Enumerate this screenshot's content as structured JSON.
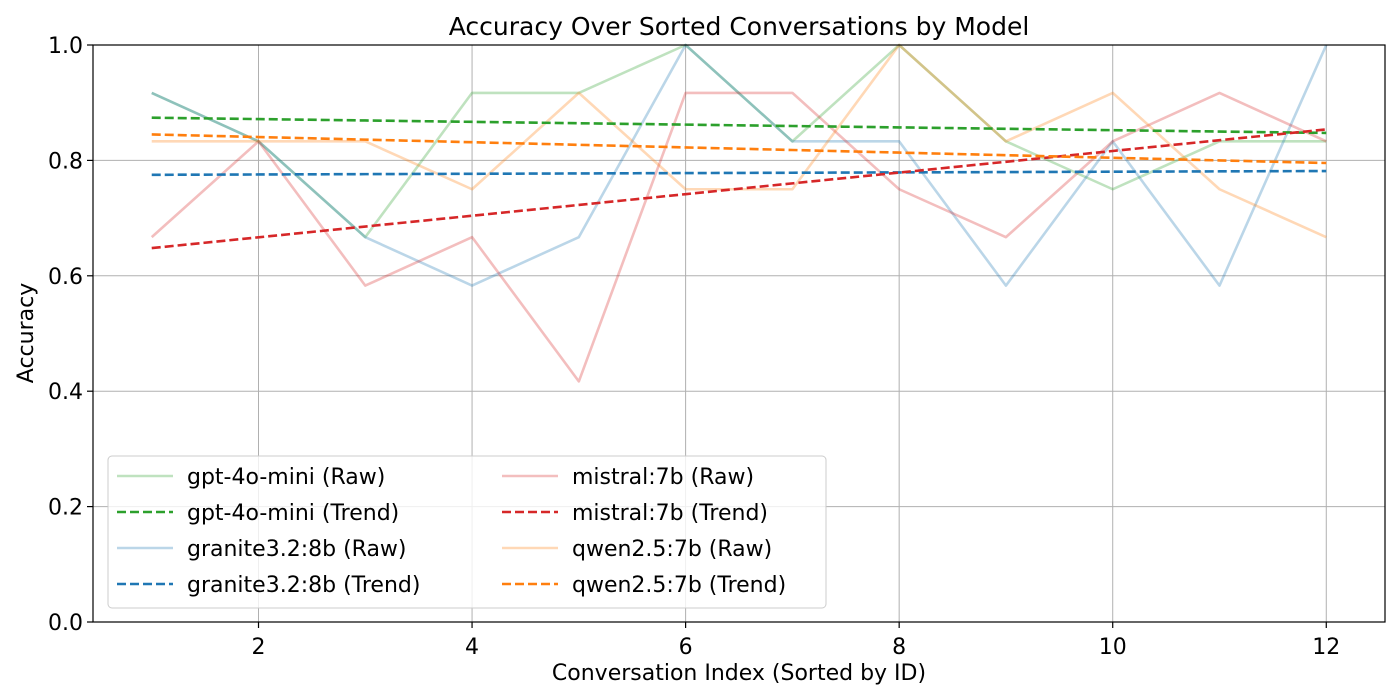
{
  "chart_data": {
    "type": "line",
    "title": "Accuracy Over Sorted Conversations by Model",
    "xlabel": "Conversation Index (Sorted by ID)",
    "ylabel": "Accuracy",
    "xlim": [
      0.45,
      12.55
    ],
    "ylim": [
      0.0,
      1.0
    ],
    "x_ticks": [
      2,
      4,
      6,
      8,
      10,
      12
    ],
    "y_ticks": [
      0.0,
      0.2,
      0.4,
      0.6,
      0.8,
      1.0
    ],
    "y_tick_labels": [
      "0.0",
      "0.2",
      "0.4",
      "0.6",
      "0.8",
      "1.0"
    ],
    "grid": true,
    "legend_position": "lower-left",
    "x": [
      1,
      2,
      3,
      4,
      5,
      6,
      7,
      8,
      9,
      10,
      11,
      12
    ],
    "series": [
      {
        "name": "gpt-4o-mini (Raw)",
        "style": "raw",
        "color": "#2ca02c",
        "values": [
          0.917,
          0.833,
          0.667,
          0.917,
          0.917,
          1.0,
          0.833,
          1.0,
          0.833,
          0.75,
          0.833,
          0.833
        ]
      },
      {
        "name": "gpt-4o-mini (Trend)",
        "style": "trend",
        "color": "#2ca02c",
        "values": [
          0.874,
          0.8716,
          0.8692,
          0.8668,
          0.8644,
          0.862,
          0.8596,
          0.8572,
          0.8548,
          0.8524,
          0.85,
          0.8476
        ]
      },
      {
        "name": "granite3.2:8b (Raw)",
        "style": "raw",
        "color": "#1f77b4",
        "values": [
          0.917,
          0.833,
          0.667,
          0.583,
          0.667,
          1.0,
          0.833,
          0.833,
          0.583,
          0.833,
          0.583,
          1.0
        ]
      },
      {
        "name": "granite3.2:8b (Trend)",
        "style": "trend",
        "color": "#1f77b4",
        "values": [
          0.775,
          0.7756,
          0.7762,
          0.7768,
          0.7774,
          0.778,
          0.7786,
          0.7792,
          0.7798,
          0.7804,
          0.781,
          0.7816
        ]
      },
      {
        "name": "mistral:7b (Raw)",
        "style": "raw",
        "color": "#d62728",
        "values": [
          0.667,
          0.833,
          0.583,
          0.667,
          0.417,
          0.917,
          0.917,
          0.75,
          0.667,
          0.833,
          0.917,
          0.833
        ]
      },
      {
        "name": "mistral:7b (Trend)",
        "style": "trend",
        "color": "#d62728",
        "values": [
          0.648,
          0.6667,
          0.6854,
          0.7041,
          0.7228,
          0.7415,
          0.7602,
          0.7789,
          0.7976,
          0.8163,
          0.835,
          0.8537
        ]
      },
      {
        "name": "qwen2.5:7b (Raw)",
        "style": "raw",
        "color": "#ff7f0e",
        "values": [
          0.833,
          0.833,
          0.833,
          0.75,
          0.917,
          0.75,
          0.75,
          1.0,
          0.833,
          0.917,
          0.75,
          0.667
        ]
      },
      {
        "name": "qwen2.5:7b (Trend)",
        "style": "trend",
        "color": "#ff7f0e",
        "values": [
          0.845,
          0.8405,
          0.836,
          0.8315,
          0.827,
          0.8225,
          0.818,
          0.8135,
          0.809,
          0.8045,
          0.8,
          0.7955
        ]
      }
    ]
  }
}
